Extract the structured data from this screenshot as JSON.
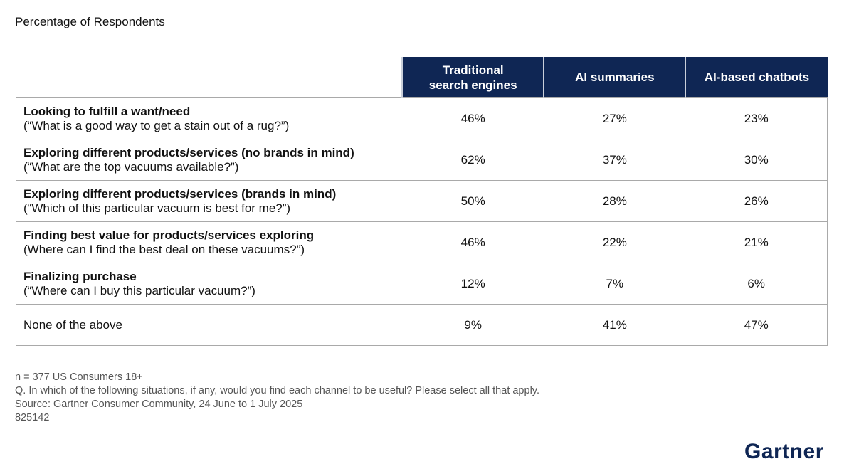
{
  "subtitle": "Percentage of Respondents",
  "columns": [
    "Traditional search engines",
    "AI summaries",
    "AI-based chatbots"
  ],
  "rows": [
    {
      "title": "Looking to fulfill a want/need",
      "example": "(“What is a good way to get a stain out of a rug?”)",
      "values": [
        "46%",
        "27%",
        "23%"
      ]
    },
    {
      "title": "Exploring different products/services (no brands in mind)",
      "example": "(“What are the top vacuums available?”)",
      "values": [
        "62%",
        "37%",
        "30%"
      ]
    },
    {
      "title": "Exploring different products/services (brands in mind)",
      "example": "(“Which of this particular vacuum is best for me?”)",
      "values": [
        "50%",
        "28%",
        "26%"
      ]
    },
    {
      "title": "Finding best value for products/services exploring",
      "example": "(Where can I find the best deal on these vacuums?”)",
      "values": [
        "46%",
        "22%",
        "21%"
      ]
    },
    {
      "title": "Finalizing purchase",
      "example": "(“Where can I buy this particular vacuum?”)",
      "values": [
        "12%",
        "7%",
        "6%"
      ]
    },
    {
      "title": "",
      "example": "None of the above",
      "values": [
        "9%",
        "41%",
        "47%"
      ]
    }
  ],
  "notes": [
    "n = 377 US Consumers 18+",
    "Q. In which of the following situations, if any, would you find each channel to be useful? Please select all that apply.",
    "Source: Gartner Consumer Community, 24 June to 1 July 2025",
    "825142"
  ],
  "logo": "Gartner",
  "colors": {
    "header": "#0f2654"
  }
}
